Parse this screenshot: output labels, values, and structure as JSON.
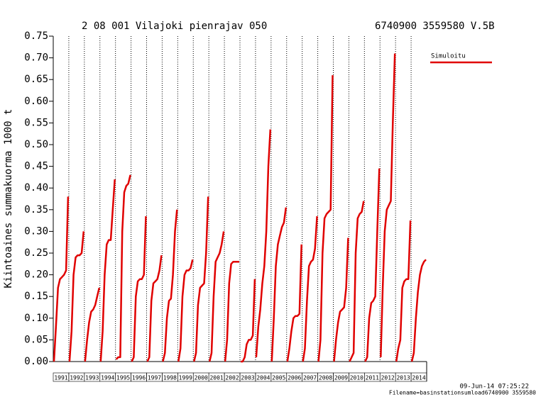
{
  "chart_data": {
    "type": "line",
    "title": "2 08 001 Vilajoki pienrajav 050",
    "subtitle": "6740900 3559580 V.5B",
    "y_label": "Kiintoaines summakuorma 1000 t",
    "footer": [
      "09-Jun-14 07:25:22",
      "Filename=basinstationsumload6740900 3559580"
    ],
    "categories": [
      "1991",
      "1992",
      "1993",
      "1994",
      "1995",
      "1996",
      "1997",
      "1998",
      "1999",
      "2000",
      "2001",
      "2002",
      "2003",
      "2004",
      "2005",
      "2006",
      "2007",
      "2008",
      "2009",
      "2010",
      "2011",
      "2012",
      "2013",
      "2014"
    ],
    "series": [
      {
        "name": "Simuloitu",
        "color": "#e00000",
        "values": [
          [
            0,
            0.08,
            0.17,
            0.19,
            0.195,
            0.2,
            0.21,
            0.38
          ],
          [
            0,
            0.07,
            0.2,
            0.24,
            0.245,
            0.245,
            0.25,
            0.3
          ],
          [
            0,
            0.05,
            0.09,
            0.115,
            0.12,
            0.13,
            0.15,
            0.17
          ],
          [
            0,
            0.07,
            0.2,
            0.27,
            0.28,
            0.28,
            0.35,
            0.42
          ],
          [
            0.005,
            0.01,
            0.01,
            0.3,
            0.39,
            0.405,
            0.41,
            0.43
          ],
          [
            0,
            0.01,
            0.15,
            0.185,
            0.19,
            0.19,
            0.2,
            0.335
          ],
          [
            0,
            0.01,
            0.14,
            0.18,
            0.185,
            0.19,
            0.21,
            0.245
          ],
          [
            0,
            0.02,
            0.1,
            0.14,
            0.145,
            0.2,
            0.3,
            0.35
          ],
          [
            0,
            0.03,
            0.15,
            0.2,
            0.21,
            0.21,
            0.215,
            0.235
          ],
          [
            0,
            0.02,
            0.13,
            0.17,
            0.175,
            0.18,
            0.25,
            0.38
          ],
          [
            0,
            0.02,
            0.15,
            0.23,
            0.24,
            0.25,
            0.27,
            0.3
          ],
          [
            0,
            0.05,
            0.18,
            0.225,
            0.23,
            0.23,
            0.23,
            0.23
          ],
          [
            0,
            0,
            0.01,
            0.04,
            0.05,
            0.05,
            0.06,
            0.19
          ],
          [
            0.01,
            0.08,
            0.12,
            0.18,
            0.22,
            0.3,
            0.45,
            0.535
          ],
          [
            0,
            0.1,
            0.22,
            0.27,
            0.29,
            0.31,
            0.32,
            0.355
          ],
          [
            0,
            0.03,
            0.07,
            0.1,
            0.105,
            0.105,
            0.11,
            0.27
          ],
          [
            0,
            0.03,
            0.14,
            0.22,
            0.23,
            0.235,
            0.26,
            0.335
          ],
          [
            0,
            0.05,
            0.25,
            0.33,
            0.34,
            0.345,
            0.35,
            0.66
          ],
          [
            0,
            0.05,
            0.09,
            0.115,
            0.12,
            0.125,
            0.17,
            0.285
          ],
          [
            0,
            0.01,
            0.02,
            0.25,
            0.33,
            0.34,
            0.345,
            0.37
          ],
          [
            0,
            0.01,
            0.1,
            0.135,
            0.14,
            0.15,
            0.3,
            0.445
          ],
          [
            0.01,
            0.17,
            0.3,
            0.35,
            0.36,
            0.37,
            0.55,
            0.71
          ],
          [
            0,
            0.03,
            0.05,
            0.17,
            0.185,
            0.19,
            0.19,
            0.325
          ],
          [
            0,
            0.02,
            0.1,
            0.16,
            0.2,
            0.22,
            0.23,
            0.235
          ]
        ]
      }
    ],
    "ylim": [
      0,
      0.75
    ],
    "yticks": [
      {
        "value": 0,
        "label": "0.00"
      },
      {
        "value": 0.05,
        "label": "0.05"
      },
      {
        "value": 0.1,
        "label": "0.10"
      },
      {
        "value": 0.15,
        "label": "0.15"
      },
      {
        "value": 0.2,
        "label": "0.20"
      },
      {
        "value": 0.25,
        "label": "0.25"
      },
      {
        "value": 0.3,
        "label": "0.30"
      },
      {
        "value": 0.35,
        "label": "0.35"
      },
      {
        "value": 0.4,
        "label": "0.40"
      },
      {
        "value": 0.45,
        "label": "0.45"
      },
      {
        "value": 0.5,
        "label": "0.50"
      },
      {
        "value": 0.55,
        "label": "0.55"
      },
      {
        "value": 0.6,
        "label": "0.60"
      },
      {
        "value": 0.65,
        "label": "0.65"
      },
      {
        "value": 0.7,
        "label": "0.70"
      },
      {
        "value": 0.75,
        "label": "0.75"
      }
    ],
    "grid": true,
    "legend": "right"
  }
}
